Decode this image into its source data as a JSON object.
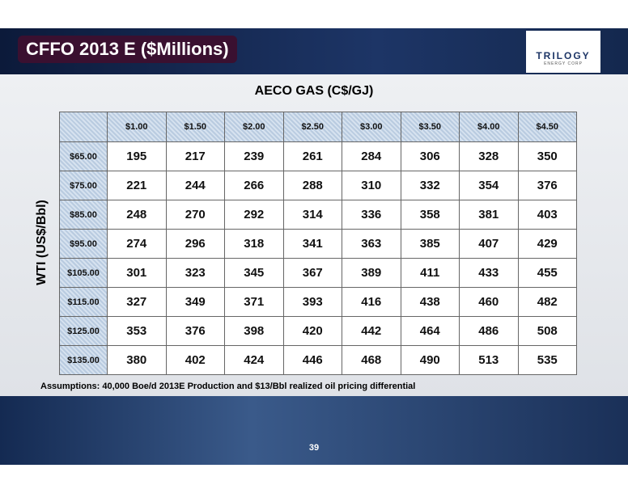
{
  "header": {
    "title": "CFFO 2013 E ($Millions)",
    "logo": {
      "name": "TRILOGY",
      "subtitle": "ENERGY CORP"
    }
  },
  "table": {
    "column_title": "AECO GAS (C$/GJ)",
    "row_title": "WTI (US$/Bbl)",
    "columns": [
      "$1.00",
      "$1.50",
      "$2.00",
      "$2.50",
      "$3.00",
      "$3.50",
      "$4.00",
      "$4.50"
    ],
    "rows": [
      {
        "label": "$65.00",
        "values": [
          195,
          217,
          239,
          261,
          284,
          306,
          328,
          350
        ]
      },
      {
        "label": "$75.00",
        "values": [
          221,
          244,
          266,
          288,
          310,
          332,
          354,
          376
        ]
      },
      {
        "label": "$85.00",
        "values": [
          248,
          270,
          292,
          314,
          336,
          358,
          381,
          403
        ]
      },
      {
        "label": "$95.00",
        "values": [
          274,
          296,
          318,
          341,
          363,
          385,
          407,
          429
        ]
      },
      {
        "label": "$105.00",
        "values": [
          301,
          323,
          345,
          367,
          389,
          411,
          433,
          455
        ]
      },
      {
        "label": "$115.00",
        "values": [
          327,
          349,
          371,
          393,
          416,
          438,
          460,
          482
        ]
      },
      {
        "label": "$125.00",
        "values": [
          353,
          376,
          398,
          420,
          442,
          464,
          486,
          508
        ]
      },
      {
        "label": "$135.00",
        "values": [
          380,
          402,
          424,
          446,
          468,
          490,
          513,
          535
        ]
      }
    ]
  },
  "footnote": "Assumptions: 40,000 Boe/d 2013E Production and $13/Bbl realized oil pricing differential",
  "page_number": "39"
}
